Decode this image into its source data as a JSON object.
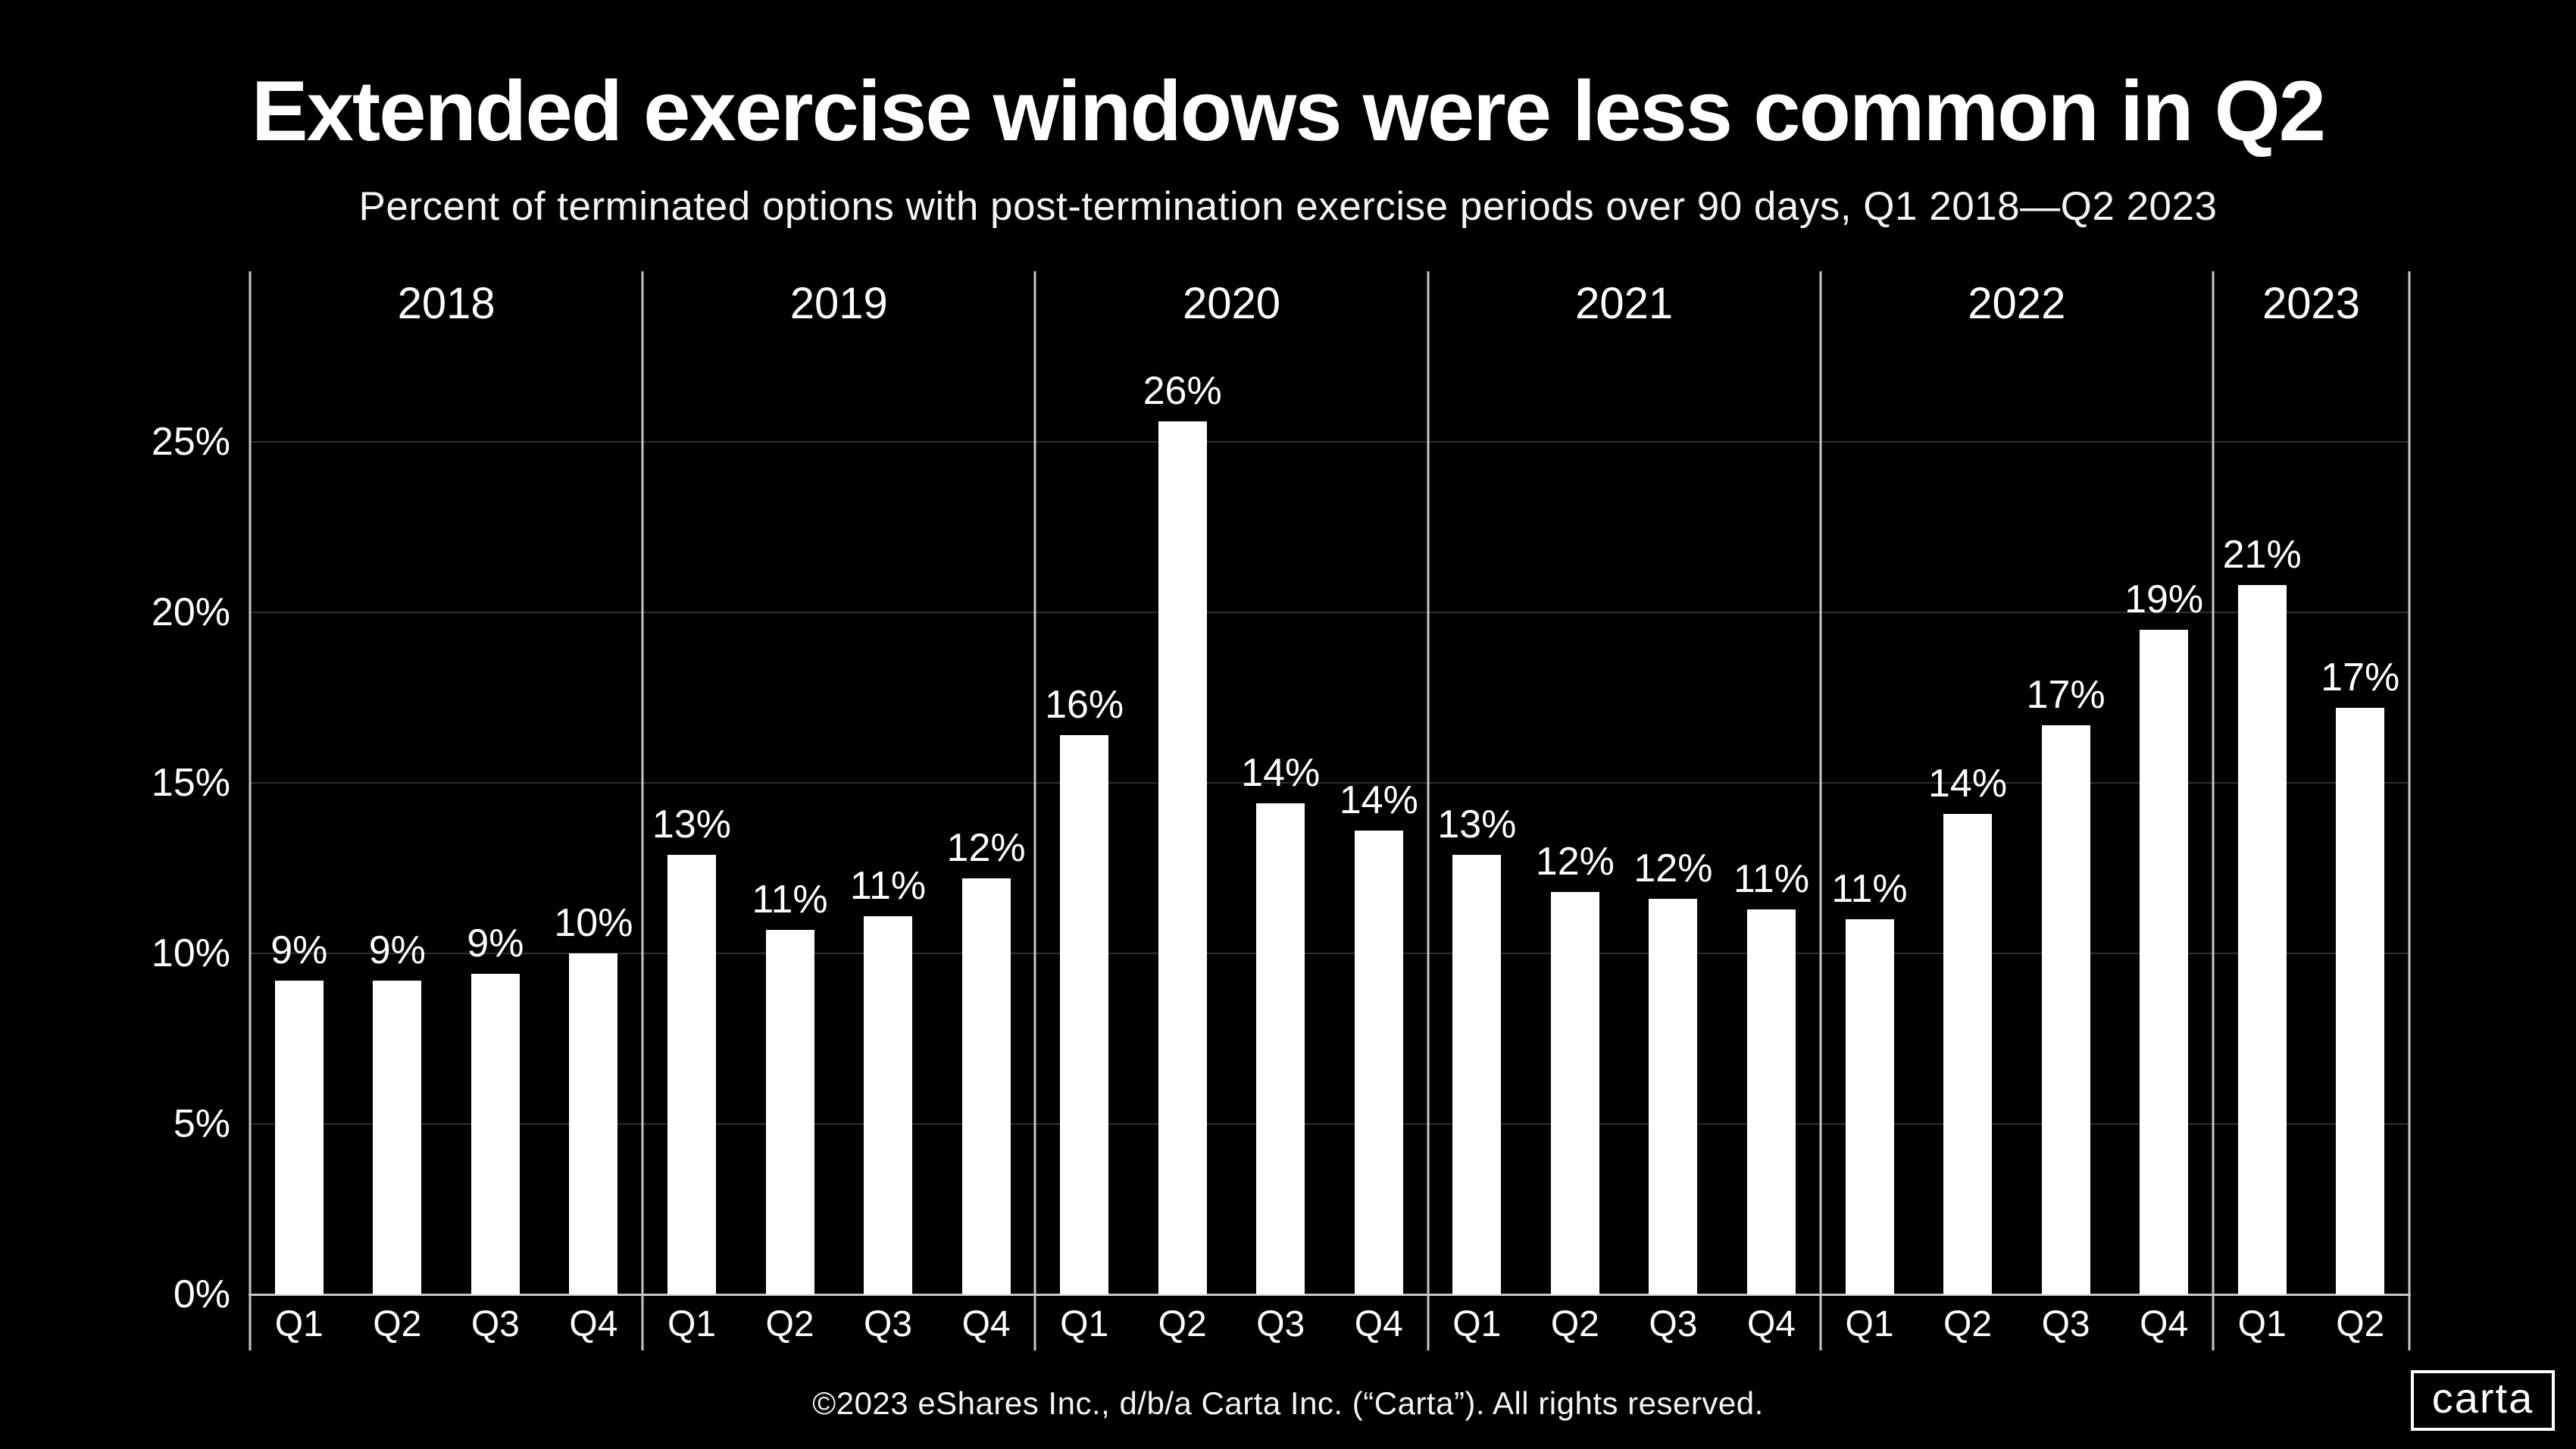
{
  "colors": {
    "background": "#000000",
    "bar": "#ffffff",
    "text": "#ffffff",
    "gridline": "#2e2e2e",
    "axis": "#c6c6c6"
  },
  "chart_data": {
    "type": "bar",
    "title": "Extended exercise windows were less common in Q2",
    "subtitle": "Percent of terminated options with post-termination exercise periods over 90 days, Q1 2018—Q2 2023",
    "xlabel": "",
    "ylabel": "",
    "ylim": [
      0,
      30
    ],
    "grid": true,
    "legend_position": "none",
    "y_ticks": [
      {
        "value": 0,
        "label": "0%"
      },
      {
        "value": 5,
        "label": "5%"
      },
      {
        "value": 10,
        "label": "10%"
      },
      {
        "value": 15,
        "label": "15%"
      },
      {
        "value": 20,
        "label": "20%"
      },
      {
        "value": 25,
        "label": "25%"
      }
    ],
    "gridline_values": [
      5,
      10,
      15,
      20,
      25
    ],
    "groups": [
      {
        "year": "2018",
        "categories": [
          "Q1",
          "Q2",
          "Q3",
          "Q4"
        ],
        "values": [
          9.2,
          9.2,
          9.4,
          10.0
        ],
        "labels": [
          "9%",
          "9%",
          "9%",
          "10%"
        ]
      },
      {
        "year": "2019",
        "categories": [
          "Q1",
          "Q2",
          "Q3",
          "Q4"
        ],
        "values": [
          12.9,
          10.7,
          11.1,
          12.2
        ],
        "labels": [
          "13%",
          "11%",
          "11%",
          "12%"
        ]
      },
      {
        "year": "2020",
        "categories": [
          "Q1",
          "Q2",
          "Q3",
          "Q4"
        ],
        "values": [
          16.4,
          25.6,
          14.4,
          13.6
        ],
        "labels": [
          "16%",
          "26%",
          "14%",
          "14%"
        ]
      },
      {
        "year": "2021",
        "categories": [
          "Q1",
          "Q2",
          "Q3",
          "Q4"
        ],
        "values": [
          12.9,
          11.8,
          11.6,
          11.3
        ],
        "labels": [
          "13%",
          "12%",
          "12%",
          "11%"
        ]
      },
      {
        "year": "2022",
        "categories": [
          "Q1",
          "Q2",
          "Q3",
          "Q4"
        ],
        "values": [
          11.0,
          14.1,
          16.7,
          19.5
        ],
        "labels": [
          "11%",
          "14%",
          "17%",
          "19%"
        ]
      },
      {
        "year": "2023",
        "categories": [
          "Q1",
          "Q2"
        ],
        "values": [
          20.8,
          17.2
        ],
        "labels": [
          "21%",
          "17%"
        ]
      }
    ]
  },
  "footer": {
    "copyright": "©2023 eShares Inc., d/b/a Carta Inc. (“Carta”). All rights reserved."
  },
  "logo": {
    "text": "carta"
  }
}
